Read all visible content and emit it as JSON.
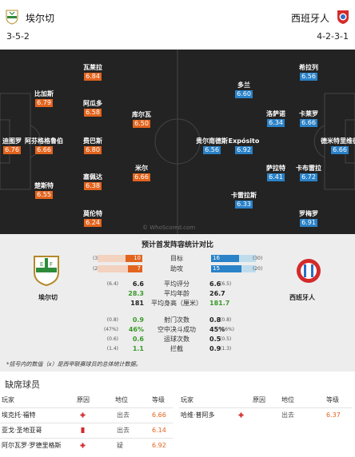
{
  "header": {
    "home_name": "埃尔切",
    "away_name": "西班牙人",
    "home_formation": "3-5-2",
    "away_formation": "4-2-3-1"
  },
  "colors": {
    "home": "#e2641e",
    "away": "#2a82c8",
    "pitch": "#232323"
  },
  "home_players": [
    {
      "name": "瓦莱拉",
      "rating": "6.84"
    },
    {
      "name": "比加斯",
      "rating": "6.79"
    },
    {
      "name": "阿瓜多",
      "rating": "6.58"
    },
    {
      "name": "库尔瓦",
      "rating": "6.50"
    },
    {
      "name": "迪图罗",
      "rating": "6.76"
    },
    {
      "name": "阿芬格格鲁伯",
      "rating": "6.66"
    },
    {
      "name": "费巴斯",
      "rating": "6.80"
    },
    {
      "name": "楚斯特",
      "rating": "6.55"
    },
    {
      "name": "塞佩达",
      "rating": "6.38"
    },
    {
      "name": "米尔",
      "rating": "6.66"
    },
    {
      "name": "莫伦特",
      "rating": "6.24"
    }
  ],
  "away_players": [
    {
      "name": "希拉列",
      "rating": "6.56"
    },
    {
      "name": "多兰",
      "rating": "6.60"
    },
    {
      "name": "洛萨诺",
      "rating": "6.34"
    },
    {
      "name": "卡莱罗",
      "rating": "6.66"
    },
    {
      "name": "贵尔南德斯",
      "rating": "6.56"
    },
    {
      "name": "Expósito",
      "rating": "6.92"
    },
    {
      "name": "德米特里维德",
      "rating": "6.66"
    },
    {
      "name": "萨拉特",
      "rating": "6.41"
    },
    {
      "name": "卡布雷拉",
      "rating": "6.72"
    },
    {
      "name": "卡雷拉斯",
      "rating": "6.33"
    },
    {
      "name": "罗梅罗",
      "rating": "6.91"
    }
  ],
  "watermark": "© WhoScored.com",
  "stats": {
    "title": "预计首发阵容统计对比",
    "home_label": "埃尔切",
    "away_label": "西班牙人",
    "bars": [
      {
        "label": "目标",
        "home_sub": "(36)",
        "home": "10",
        "away": "16",
        "away_sub": "(30)",
        "home_pct": 0.38,
        "away_pct": 0.62
      },
      {
        "label": "助攻",
        "home_sub": "(23)",
        "home": "7",
        "away": "15",
        "away_sub": "(20)",
        "home_pct": 0.32,
        "away_pct": 0.68
      }
    ],
    "rows": [
      {
        "label": "平均评分",
        "home_sub": "(6.4)",
        "home": "6.6",
        "away": "6.6",
        "away_sub": "(6.5)",
        "home_green": false,
        "away_green": false
      },
      {
        "label": "平均年龄",
        "home_sub": "",
        "home": "28.3",
        "away": "26.7",
        "away_sub": "",
        "home_green": true,
        "away_green": false
      },
      {
        "label": "平均身高（厘米）",
        "home_sub": "",
        "home": "181",
        "away": "181.7",
        "away_sub": "",
        "home_green": false,
        "away_green": true
      },
      {
        "label": "射门次数",
        "home_sub": "(0.8)",
        "home": "0.9",
        "away": "0.8",
        "away_sub": "(0.8)",
        "home_green": true,
        "away_green": false
      },
      {
        "label": "空中决斗成功",
        "home_sub": "(47%)",
        "home": "46%",
        "away": "45%",
        "away_sub": "(46%)",
        "home_green": true,
        "away_green": false
      },
      {
        "label": "运球次数",
        "home_sub": "(0.6)",
        "home": "0.6",
        "away": "0.5",
        "away_sub": "(0.5)",
        "home_green": true,
        "away_green": false
      },
      {
        "label": "拦截",
        "home_sub": "(1.4)",
        "home": "1.1",
        "away": "0.9",
        "away_sub": "(1.3)",
        "home_green": true,
        "away_green": false
      }
    ],
    "footnote": "*括号内的数值（x）是西甲联赛球员的总体统计数据。"
  },
  "absent": {
    "title": "缺席球员",
    "headers": {
      "player": "玩家",
      "reason": "原因",
      "position": "地位",
      "level": "等级"
    },
    "home": [
      {
        "player": "埃克托·福特",
        "reason_icon": "injury-cross-icon",
        "position": "出去",
        "level": "6.66"
      },
      {
        "player": "亚戈·圣地亚哥",
        "reason_icon": "red-card-icon",
        "position": "出去",
        "level": "6.14"
      },
      {
        "player": "阿尔瓦罗·罗德里格斯",
        "reason_icon": "injury-cross-icon",
        "position": "疑",
        "level": "6.92"
      }
    ],
    "away": [
      {
        "player": "哈维·普阿多",
        "reason_icon": "injury-cross-icon",
        "position": "出去",
        "level": "6.37"
      }
    ]
  }
}
